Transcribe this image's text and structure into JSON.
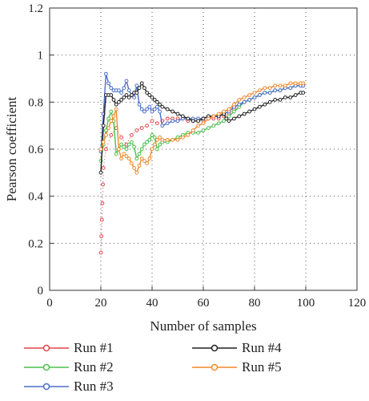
{
  "chart_data": {
    "type": "line",
    "xlabel": "Number of samples",
    "ylabel": "Pearson coefficient",
    "xlim": [
      0,
      120
    ],
    "ylim": [
      0,
      1.2
    ],
    "xticks": [
      0,
      20,
      40,
      60,
      80,
      100,
      120
    ],
    "yticks": [
      0,
      0.2,
      0.4,
      0.6,
      0.8,
      1,
      1.2
    ],
    "xtick_labels": [
      "0",
      "20",
      "40",
      "60",
      "80",
      "100",
      "120"
    ],
    "ytick_labels": [
      "0",
      "0.2",
      "0.4",
      "0.6",
      "0.8",
      "1",
      "1.2"
    ],
    "grid": "dotted",
    "legend_placement": "below",
    "series": [
      {
        "name": "Run #1",
        "color": "#e0474c",
        "style": "dotted-markers",
        "points": [
          [
            20,
            0.16
          ],
          [
            20.2,
            0.23
          ],
          [
            20.4,
            0.3
          ],
          [
            20.6,
            0.37
          ],
          [
            20.8,
            0.45
          ],
          [
            21,
            0.52
          ],
          [
            22,
            0.6
          ],
          [
            24,
            0.66
          ],
          [
            26,
            0.69
          ],
          [
            28,
            0.65
          ],
          [
            30,
            0.62
          ],
          [
            32,
            0.66
          ],
          [
            34,
            0.68
          ],
          [
            36,
            0.69
          ],
          [
            38,
            0.7
          ],
          [
            40,
            0.72
          ],
          [
            42,
            0.71
          ],
          [
            44,
            0.72
          ],
          [
            46,
            0.73
          ],
          [
            48,
            0.73
          ],
          [
            50,
            0.73
          ],
          [
            52,
            0.73
          ],
          [
            54,
            0.72
          ],
          [
            56,
            0.72
          ],
          [
            58,
            0.72
          ],
          [
            60,
            0.72
          ],
          [
            62,
            0.73
          ],
          [
            64,
            0.73
          ],
          [
            66,
            0.73
          ],
          [
            68,
            0.74
          ],
          [
            70,
            0.75
          ],
          [
            72,
            0.77
          ],
          [
            74,
            0.79
          ],
          [
            76,
            0.8
          ],
          [
            78,
            0.81
          ],
          [
            80,
            0.82
          ],
          [
            82,
            0.83
          ],
          [
            84,
            0.84
          ],
          [
            86,
            0.84
          ],
          [
            88,
            0.85
          ],
          [
            90,
            0.85
          ],
          [
            92,
            0.86
          ],
          [
            94,
            0.86
          ],
          [
            96,
            0.87
          ],
          [
            98,
            0.87
          ],
          [
            99,
            0.87
          ]
        ]
      },
      {
        "name": "Run #2",
        "color": "#4dbf4d",
        "style": "line-markers",
        "points": [
          [
            20,
            0.55
          ],
          [
            21,
            0.62
          ],
          [
            22,
            0.68
          ],
          [
            23,
            0.73
          ],
          [
            24,
            0.76
          ],
          [
            25,
            0.72
          ],
          [
            26,
            0.58
          ],
          [
            27,
            0.6
          ],
          [
            28,
            0.62
          ],
          [
            29,
            0.61
          ],
          [
            30,
            0.6
          ],
          [
            31,
            0.62
          ],
          [
            32,
            0.63
          ],
          [
            33,
            0.61
          ],
          [
            34,
            0.56
          ],
          [
            35,
            0.58
          ],
          [
            36,
            0.6
          ],
          [
            37,
            0.62
          ],
          [
            38,
            0.63
          ],
          [
            39,
            0.64
          ],
          [
            40,
            0.66
          ],
          [
            41,
            0.65
          ],
          [
            42,
            0.6
          ],
          [
            43,
            0.62
          ],
          [
            44,
            0.63
          ],
          [
            46,
            0.63
          ],
          [
            48,
            0.64
          ],
          [
            50,
            0.65
          ],
          [
            52,
            0.66
          ],
          [
            54,
            0.67
          ],
          [
            56,
            0.67
          ],
          [
            58,
            0.67
          ],
          [
            60,
            0.68
          ],
          [
            62,
            0.69
          ],
          [
            64,
            0.7
          ],
          [
            66,
            0.71
          ],
          [
            68,
            0.72
          ],
          [
            70,
            0.74
          ],
          [
            72,
            0.76
          ],
          [
            74,
            0.78
          ],
          [
            76,
            0.8
          ],
          [
            78,
            0.81
          ],
          [
            80,
            0.82
          ],
          [
            82,
            0.83
          ],
          [
            84,
            0.84
          ],
          [
            86,
            0.84
          ],
          [
            88,
            0.85
          ],
          [
            90,
            0.85
          ],
          [
            92,
            0.86
          ],
          [
            94,
            0.86
          ],
          [
            96,
            0.87
          ],
          [
            98,
            0.87
          ],
          [
            99,
            0.88
          ]
        ]
      },
      {
        "name": "Run #3",
        "color": "#4a6fc6",
        "style": "line-markers",
        "points": [
          [
            20,
            0.59
          ],
          [
            21,
            0.75
          ],
          [
            22,
            0.92
          ],
          [
            23,
            0.88
          ],
          [
            24,
            0.86
          ],
          [
            25,
            0.85
          ],
          [
            26,
            0.85
          ],
          [
            27,
            0.85
          ],
          [
            28,
            0.84
          ],
          [
            29,
            0.86
          ],
          [
            30,
            0.89
          ],
          [
            31,
            0.85
          ],
          [
            32,
            0.83
          ],
          [
            33,
            0.82
          ],
          [
            34,
            0.87
          ],
          [
            35,
            0.79
          ],
          [
            36,
            0.77
          ],
          [
            37,
            0.76
          ],
          [
            38,
            0.77
          ],
          [
            39,
            0.78
          ],
          [
            40,
            0.76
          ],
          [
            41,
            0.77
          ],
          [
            42,
            0.78
          ],
          [
            43,
            0.76
          ],
          [
            44,
            0.7
          ],
          [
            46,
            0.71
          ],
          [
            48,
            0.72
          ],
          [
            50,
            0.72
          ],
          [
            52,
            0.73
          ],
          [
            54,
            0.73
          ],
          [
            56,
            0.73
          ],
          [
            58,
            0.73
          ],
          [
            60,
            0.73
          ],
          [
            62,
            0.74
          ],
          [
            64,
            0.74
          ],
          [
            66,
            0.74
          ],
          [
            68,
            0.75
          ],
          [
            70,
            0.76
          ],
          [
            72,
            0.78
          ],
          [
            74,
            0.79
          ],
          [
            76,
            0.8
          ],
          [
            78,
            0.81
          ],
          [
            80,
            0.82
          ],
          [
            82,
            0.83
          ],
          [
            84,
            0.84
          ],
          [
            86,
            0.84
          ],
          [
            88,
            0.85
          ],
          [
            90,
            0.85
          ],
          [
            92,
            0.86
          ],
          [
            94,
            0.86
          ],
          [
            96,
            0.87
          ],
          [
            98,
            0.87
          ],
          [
            99,
            0.87
          ]
        ]
      },
      {
        "name": "Run #4",
        "color": "#222222",
        "style": "line-markers",
        "points": [
          [
            20,
            0.5
          ],
          [
            21,
            0.7
          ],
          [
            22,
            0.83
          ],
          [
            23,
            0.83
          ],
          [
            24,
            0.83
          ],
          [
            25,
            0.81
          ],
          [
            26,
            0.79
          ],
          [
            27,
            0.8
          ],
          [
            28,
            0.81
          ],
          [
            29,
            0.82
          ],
          [
            30,
            0.83
          ],
          [
            31,
            0.82
          ],
          [
            32,
            0.83
          ],
          [
            33,
            0.84
          ],
          [
            34,
            0.84
          ],
          [
            35,
            0.86
          ],
          [
            36,
            0.88
          ],
          [
            37,
            0.86
          ],
          [
            38,
            0.84
          ],
          [
            39,
            0.83
          ],
          [
            40,
            0.82
          ],
          [
            41,
            0.81
          ],
          [
            42,
            0.8
          ],
          [
            43,
            0.79
          ],
          [
            44,
            0.78
          ],
          [
            46,
            0.77
          ],
          [
            48,
            0.76
          ],
          [
            50,
            0.75
          ],
          [
            52,
            0.74
          ],
          [
            54,
            0.73
          ],
          [
            56,
            0.72
          ],
          [
            58,
            0.72
          ],
          [
            60,
            0.73
          ],
          [
            62,
            0.74
          ],
          [
            64,
            0.74
          ],
          [
            66,
            0.74
          ],
          [
            68,
            0.75
          ],
          [
            69,
            0.73
          ],
          [
            70,
            0.72
          ],
          [
            72,
            0.73
          ],
          [
            74,
            0.74
          ],
          [
            76,
            0.75
          ],
          [
            78,
            0.76
          ],
          [
            80,
            0.77
          ],
          [
            82,
            0.78
          ],
          [
            84,
            0.79
          ],
          [
            86,
            0.8
          ],
          [
            88,
            0.81
          ],
          [
            90,
            0.81
          ],
          [
            92,
            0.82
          ],
          [
            94,
            0.82
          ],
          [
            96,
            0.83
          ],
          [
            98,
            0.84
          ],
          [
            99,
            0.84
          ]
        ]
      },
      {
        "name": "Run #5",
        "color": "#f08a2c",
        "style": "line-markers",
        "points": [
          [
            20,
            0.6
          ],
          [
            21,
            0.63
          ],
          [
            22,
            0.66
          ],
          [
            23,
            0.69
          ],
          [
            24,
            0.72
          ],
          [
            25,
            0.74
          ],
          [
            26,
            0.77
          ],
          [
            27,
            0.6
          ],
          [
            28,
            0.56
          ],
          [
            29,
            0.58
          ],
          [
            30,
            0.57
          ],
          [
            31,
            0.56
          ],
          [
            32,
            0.54
          ],
          [
            33,
            0.52
          ],
          [
            34,
            0.5
          ],
          [
            35,
            0.53
          ],
          [
            36,
            0.56
          ],
          [
            37,
            0.55
          ],
          [
            38,
            0.54
          ],
          [
            39,
            0.56
          ],
          [
            40,
            0.6
          ],
          [
            41,
            0.62
          ],
          [
            42,
            0.64
          ],
          [
            43,
            0.65
          ],
          [
            44,
            0.64
          ],
          [
            46,
            0.64
          ],
          [
            48,
            0.64
          ],
          [
            50,
            0.64
          ],
          [
            52,
            0.65
          ],
          [
            54,
            0.66
          ],
          [
            56,
            0.68
          ],
          [
            58,
            0.7
          ],
          [
            60,
            0.71
          ],
          [
            62,
            0.73
          ],
          [
            64,
            0.74
          ],
          [
            66,
            0.75
          ],
          [
            68,
            0.76
          ],
          [
            70,
            0.77
          ],
          [
            72,
            0.79
          ],
          [
            74,
            0.81
          ],
          [
            76,
            0.82
          ],
          [
            78,
            0.83
          ],
          [
            80,
            0.84
          ],
          [
            82,
            0.85
          ],
          [
            84,
            0.86
          ],
          [
            86,
            0.86
          ],
          [
            88,
            0.87
          ],
          [
            90,
            0.87
          ],
          [
            92,
            0.87
          ],
          [
            94,
            0.88
          ],
          [
            96,
            0.88
          ],
          [
            98,
            0.88
          ],
          [
            99,
            0.88
          ]
        ]
      }
    ]
  }
}
